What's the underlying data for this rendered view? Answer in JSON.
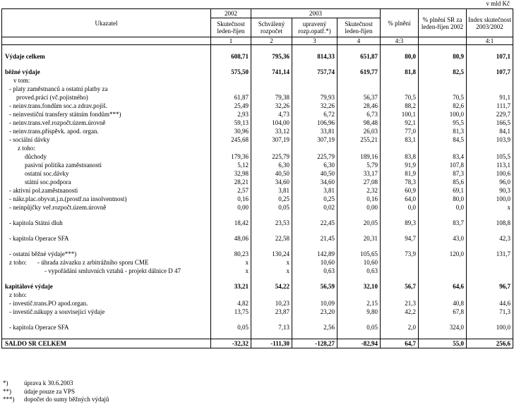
{
  "unit": "v mld Kč",
  "header": {
    "indicator": "Ukazatel",
    "year2002": "2002",
    "actual2002": "Skutečnost leden-říjen",
    "year2003": "2003",
    "approved": "Schválený rozpočet",
    "adjusted": "upravený rozp.opatř.*)",
    "actual2003": "Skutečnost leden-říjen",
    "fulfil": "% plnění",
    "fulfil_sr": "% plnění SR za leden-říjen 2002",
    "index": "Index skutečnost 2003/2002",
    "numbers": [
      "1",
      "2",
      "3",
      "4",
      "4:3",
      null,
      "4:1"
    ]
  },
  "rows": [
    {
      "label": "Výdaje celkem",
      "values": [
        "608,71",
        "795,36",
        "814,33",
        "651,87",
        "80,0",
        "80,9",
        "107,1"
      ]
    },
    {
      "label": "běžné výdaje",
      "values": [
        "575,50",
        "741,14",
        "757,74",
        "619,77",
        "81,8",
        "82,5",
        "107,7"
      ]
    },
    {
      "label": "v tom:"
    },
    {
      "label": "- platy zaměstnanců a ostatní platby za"
    },
    {
      "label": "proved.prácí (vč.pojistného)",
      "values": [
        "61,87",
        "79,38",
        "79,93",
        "56,37",
        "70,5",
        "70,5",
        "91,1"
      ]
    },
    {
      "label": "- neinv.trans.fondům soc.a zdrav.pojiš.",
      "values": [
        "25,49",
        "32,26",
        "32,26",
        "28,46",
        "88,2",
        "82,6",
        "111,7"
      ]
    },
    {
      "label": "- neinvestiční transfery státním fondům***)",
      "values": [
        "2,93",
        "4,73",
        "6,72",
        "6,73",
        "100,1",
        "100,0",
        "229,7"
      ]
    },
    {
      "label": "- neinv.trans.veř.rozpočt.územ.úrovně",
      "values": [
        "59,13",
        "104,00",
        "106,96",
        "98,48",
        "92,1",
        "95,5",
        "166,5"
      ]
    },
    {
      "label": "- neinv.trans.příspěvk. apod. organ.",
      "values": [
        "30,96",
        "33,12",
        "33,81",
        "26,03",
        "77,0",
        "81,3",
        "84,1"
      ]
    },
    {
      "label": "- sociální dávky",
      "values": [
        "245,68",
        "307,19",
        "307,19",
        "255,21",
        "83,1",
        "84,5",
        "103,9"
      ]
    },
    {
      "label": "z toho:"
    },
    {
      "label": "důchody",
      "values": [
        "179,36",
        "225,79",
        "225,79",
        "189,16",
        "83,8",
        "83,4",
        "105,5"
      ]
    },
    {
      "label": "pasivní politika zaměstnanosti",
      "values": [
        "5,12",
        "6,30",
        "6,30",
        "5,79",
        "91,9",
        "107,8",
        "113,1"
      ]
    },
    {
      "label": "ostatní soc.dávky",
      "values": [
        "32,98",
        "40,50",
        "40,50",
        "33,17",
        "81,9",
        "87,3",
        "100,6"
      ]
    },
    {
      "label": "státní soc.podpora",
      "values": [
        "28,21",
        "34,60",
        "34,60",
        "27,08",
        "78,3",
        "85,6",
        "96,0"
      ]
    },
    {
      "label": "- aktivní pol.zaměstnanosti",
      "values": [
        "2,57",
        "3,81",
        "3,81",
        "2,32",
        "60,9",
        "69,1",
        "90,3"
      ]
    },
    {
      "label": "- nákr.plac.obyvat.j.n.(prostř.na insolventnost)",
      "values": [
        "0,16",
        "0,25",
        "0,25",
        "0,16",
        "64,0",
        "80,0",
        "100,0"
      ]
    },
    {
      "label": "- neinpůjčky veř.rozpočt.územ.úrovně",
      "values": [
        "0,00",
        "0,05",
        "0,02",
        "0,00",
        "0,0",
        "0,0",
        "x"
      ]
    },
    {
      "label": "- kapitola Státní dluh",
      "values": [
        "18,42",
        "23,53",
        "22,45",
        "20,05",
        "89,3",
        "83,7",
        "108,8"
      ]
    },
    {
      "label": "- kapitola Operace SFA",
      "values": [
        "48,06",
        "22,58",
        "21,45",
        "20,31",
        "94,7",
        "43,0",
        "42,3"
      ]
    },
    {
      "label": "- ostatní běžné výdaje***)",
      "values": [
        "80,23",
        "130,24",
        "142,89",
        "105,65",
        "73,9",
        "120,0",
        "131,7"
      ]
    },
    {
      "prefix": "z toho:",
      "label": "- úhrada závazku z arbitrážního sporu CME",
      "values": [
        "x",
        "x",
        "10,60",
        "10,60",
        null,
        null,
        null
      ]
    },
    {
      "label": "- vypořádání smluvních vztahů - projekt dálnice D 47",
      "values": [
        "x",
        "x",
        "0,63",
        "0,63",
        null,
        null,
        null
      ]
    },
    {
      "label": "kapitálové výdaje",
      "values": [
        "33,21",
        "54,22",
        "56,59",
        "32,10",
        "56,7",
        "64,6",
        "96,7"
      ]
    },
    {
      "label": "z toho:"
    },
    {
      "label": "- investič.trans.PO apod.organ.",
      "values": [
        "4,82",
        "10,23",
        "10,09",
        "2,15",
        "21,3",
        "40,8",
        "44,6"
      ]
    },
    {
      "label": "- investič.nákupy a související výdaje",
      "values": [
        "13,75",
        "23,87",
        "23,20",
        "9,80",
        "42,2",
        "67,8",
        "71,3"
      ]
    },
    {
      "label": "- kapitola Operace SFA",
      "values": [
        "0,05",
        "7,13",
        "2,56",
        "0,05",
        "2,0",
        "324,0",
        "100,0"
      ]
    },
    {
      "label": "SALDO SR CELKEM",
      "values": [
        "-32,32",
        "-111,30",
        "-128,27",
        "-82,94",
        "64,7",
        "55,0",
        "256,6"
      ]
    }
  ],
  "footnotes": [
    {
      "mark": "*)",
      "text": "úprava k 30.6.2003"
    },
    {
      "mark": "**)",
      "text": "údaje pouze za VPS"
    },
    {
      "mark": "***)",
      "text": "dopočet do sumy běžných výdajů"
    }
  ]
}
